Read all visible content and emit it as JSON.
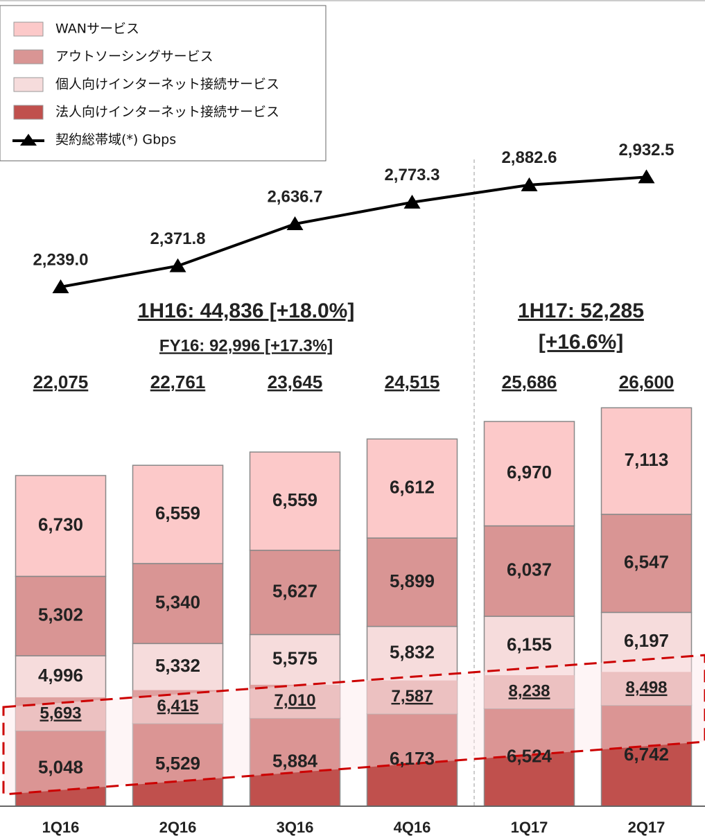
{
  "chart_data": {
    "type": "stacked_bar",
    "categories": [
      "1Q16",
      "2Q16",
      "3Q16",
      "4Q16",
      "1Q17",
      "2Q17"
    ],
    "ylim": [
      0,
      28000
    ],
    "y2lim": [
      1600,
      4050
    ],
    "legend": "top-left",
    "series": [
      {
        "name": "法人向けインターネット接続サービス",
        "color": "#c0504d",
        "values": [
          5048,
          5529,
          5884,
          6173,
          6524,
          6742
        ],
        "value_labels": [
          "5,048",
          "5,529",
          "5,884",
          "6,173",
          "6,524",
          "6,742"
        ]
      },
      {
        "name": "個人向けインターネット接続サービス",
        "color": "#f6dcdc",
        "values": [
          4996,
          5332,
          5575,
          5832,
          6155,
          6197
        ],
        "value_labels": [
          "4,996",
          "5,332",
          "5,575",
          "5,832",
          "6,155",
          "6,197"
        ]
      },
      {
        "name": "アウトソーシングサービス",
        "color": "#d99594",
        "values": [
          5302,
          5340,
          5627,
          5899,
          6037,
          6547
        ],
        "value_labels": [
          "5,302",
          "5,340",
          "5,627",
          "5,899",
          "6,037",
          "6,547"
        ]
      },
      {
        "name": "WANサービス",
        "color": "#fcc9c9",
        "values": [
          6730,
          6559,
          6559,
          6612,
          6970,
          7113
        ],
        "value_labels": [
          "6,730",
          "6,559",
          "6,559",
          "6,612",
          "6,970",
          "7,113"
        ]
      }
    ],
    "highlight": {
      "color": "#dfa09f",
      "values": [
        5693,
        6415,
        7010,
        7587,
        8238,
        8498
      ],
      "value_labels": [
        "5,693",
        "6,415",
        "7,010",
        "7,587",
        "8,238",
        "8,498"
      ]
    },
    "totals": [
      22075,
      22761,
      23645,
      24515,
      25686,
      26600
    ],
    "total_labels": [
      "22,075",
      "22,761",
      "23,645",
      "24,515",
      "25,686",
      "26,600"
    ],
    "line": {
      "name": "契約総帯域(*) Gbps",
      "color": "#000000",
      "axis": "y2",
      "values": [
        2239.0,
        2371.8,
        2636.7,
        2773.3,
        2882.6,
        2932.5
      ],
      "value_labels": [
        "2,239.0",
        "2,371.8",
        "2,636.7",
        "2,773.3",
        "2,882.6",
        "2,932.5"
      ]
    },
    "annotations": [
      {
        "lines": [
          "1H16: 44,836 [+18.0%]"
        ]
      },
      {
        "lines": [
          "FY16: 92,996 [+17.3%]"
        ]
      },
      {
        "lines": [
          "1H17: 52,285",
          "[+16.6%]"
        ]
      }
    ]
  }
}
